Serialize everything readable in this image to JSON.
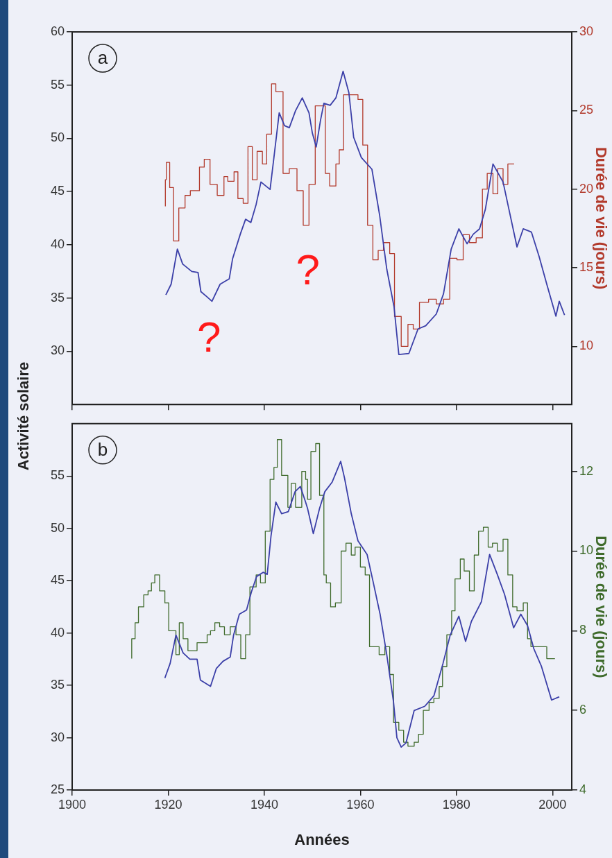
{
  "chart_data": [
    {
      "type": "line",
      "title": "a",
      "ylabel": "Activité solaire",
      "y2label": "Durée de vie (jours)",
      "xlim": [
        1900,
        2004
      ],
      "xticks": [
        1900,
        1920,
        1940,
        1960,
        1980,
        2000
      ],
      "ylim": [
        25,
        60
      ],
      "yticks": [
        30,
        35,
        40,
        45,
        50,
        55,
        60
      ],
      "y2lim": [
        6.3,
        30
      ],
      "y2ticks": [
        10,
        15,
        20,
        25,
        30
      ],
      "tick_labels": "y",
      "marker": "none",
      "grid": false,
      "legend": false,
      "annotations": [
        "?",
        "?"
      ],
      "series": [
        {
          "type": "line",
          "color": "#3b3fa8",
          "x": [
            1919.5,
            1920.6,
            1921.9,
            1923.0,
            1924.9,
            1926.2,
            1926.8,
            1928.1,
            1929.1,
            1930.8,
            1932.7,
            1933.4,
            1935.0,
            1936.1,
            1937.2,
            1938.3,
            1939.3,
            1941.2,
            1942.0,
            1943.1,
            1944.2,
            1945.2,
            1946.5,
            1947.9,
            1949.3,
            1950.0,
            1950.8,
            1951.7,
            1952.4,
            1953.7,
            1954.9,
            1956.4,
            1957.6,
            1958.6,
            1960.2,
            1962.4,
            1964.0,
            1965.5,
            1967.0,
            1968.0,
            1970.1,
            1972.0,
            1973.6,
            1975.8,
            1977.3,
            1978.9,
            1980.5,
            1982.2,
            1983.5,
            1984.8,
            1986.0,
            1987.6,
            1989.7,
            1990.7,
            1992.6,
            1993.9,
            1995.6,
            1997.2,
            1998.8,
            2000.7,
            2001.4,
            2002.5
          ],
          "values": [
            35.3,
            36.3,
            39.6,
            38.2,
            37.5,
            37.4,
            35.6,
            35.1,
            34.7,
            36.3,
            36.8,
            38.7,
            41.0,
            42.4,
            42.1,
            43.8,
            45.9,
            45.2,
            48.2,
            52.4,
            51.2,
            51.0,
            52.6,
            53.8,
            52.4,
            50.5,
            49.2,
            51.7,
            53.3,
            53.1,
            53.8,
            56.3,
            54.3,
            50.1,
            48.2,
            47.1,
            42.8,
            37.7,
            34.2,
            29.7,
            29.8,
            32.1,
            32.4,
            33.5,
            35.4,
            39.6,
            41.5,
            40.1,
            41.0,
            41.5,
            43.3,
            47.6,
            45.9,
            43.8,
            39.8,
            41.5,
            41.2,
            38.9,
            36.3,
            33.3,
            34.7,
            33.4
          ]
        },
        {
          "type": "step",
          "axis": "y2",
          "color": "#b23a2c",
          "x": [
            1919.4,
            1919.6,
            1920.3,
            1921.1,
            1922.2,
            1923.5,
            1924.6,
            1926.5,
            1927.5,
            1928.7,
            1930.2,
            1931.6,
            1932.4,
            1933.7,
            1934.5,
            1935.6,
            1936.6,
            1937.5,
            1938.5,
            1939.6,
            1940.5,
            1941.5,
            1942.4,
            1943.9,
            1945.2,
            1946.8,
            1948.1,
            1949.3,
            1950.6,
            1951.4,
            1952.7,
            1953.6,
            1954.9,
            1955.6,
            1956.5,
            1958.1,
            1959.5,
            1960.5,
            1961.5,
            1962.6,
            1963.7,
            1964.8,
            1966.1,
            1967.1,
            1968.5,
            1969.9,
            1971.0,
            1972.3,
            1974.2,
            1975.8,
            1977.3,
            1978.6,
            1980.1,
            1981.4,
            1982.7,
            1984.1,
            1985.4,
            1986.4,
            1987.6,
            1988.6,
            1989.7,
            1990.7,
            1991.6,
            1992.0
          ],
          "values": [
            18.9,
            20.6,
            21.7,
            20.1,
            16.7,
            18.8,
            19.6,
            19.9,
            21.4,
            21.9,
            20.3,
            19.6,
            20.8,
            20.5,
            21.1,
            19.4,
            19.1,
            22.7,
            20.6,
            22.4,
            21.6,
            23.5,
            26.7,
            26.2,
            21.0,
            21.3,
            19.9,
            17.7,
            20.3,
            25.3,
            25.3,
            21.0,
            20.2,
            21.6,
            22.5,
            26.0,
            26.0,
            25.7,
            22.8,
            17.7,
            15.5,
            16.1,
            16.6,
            15.9,
            11.9,
            10.0,
            11.4,
            11.1,
            12.8,
            13.0,
            12.7,
            13.0,
            15.6,
            15.5,
            17.1,
            16.6,
            16.9,
            20.0,
            21.0,
            19.7,
            21.3,
            20.3,
            21.6,
            21.6
          ]
        }
      ]
    },
    {
      "type": "line",
      "title": "b",
      "xlabel": "Années",
      "y2label": "Durée de vie (jours)",
      "xlim": [
        1900,
        2004
      ],
      "xticks": [
        1900,
        1920,
        1940,
        1960,
        1980,
        2000
      ],
      "ylim": [
        25,
        60
      ],
      "yticks": [
        25,
        30,
        35,
        40,
        45,
        50,
        55
      ],
      "y2lim": [
        4,
        13.2
      ],
      "y2ticks": [
        4,
        6,
        8,
        10,
        12
      ],
      "marker": "none",
      "grid": false,
      "legend": false,
      "series": [
        {
          "type": "line",
          "color": "#3b3fa8",
          "x": [
            1919.3,
            1920.4,
            1921.6,
            1923.1,
            1924.5,
            1926.0,
            1926.7,
            1928.8,
            1930.0,
            1931.4,
            1932.9,
            1933.6,
            1934.8,
            1936.3,
            1937.3,
            1938.4,
            1939.8,
            1940.6,
            1941.4,
            1942.4,
            1943.6,
            1945.0,
            1946.4,
            1947.5,
            1948.6,
            1949.0,
            1950.2,
            1951.5,
            1952.6,
            1954.1,
            1955.9,
            1956.7,
            1958.1,
            1959.5,
            1961.4,
            1962.6,
            1964.1,
            1965.5,
            1966.9,
            1967.6,
            1968.5,
            1969.5,
            1971.2,
            1973.4,
            1975.3,
            1977.2,
            1978.7,
            1980.5,
            1981.9,
            1983.1,
            1985.2,
            1986.9,
            1988.5,
            1990.0,
            1991.9,
            1993.4,
            1994.8,
            1996.1,
            1997.7,
            1999.8,
            2001.4
          ],
          "values": [
            35.7,
            37.1,
            39.8,
            38.1,
            37.5,
            37.5,
            35.5,
            34.9,
            36.6,
            37.3,
            37.7,
            39.8,
            41.8,
            42.2,
            43.9,
            45.4,
            45.8,
            45.6,
            49.3,
            52.5,
            51.4,
            51.6,
            53.5,
            54.0,
            52.5,
            51.9,
            49.5,
            51.9,
            53.5,
            54.4,
            56.4,
            54.8,
            51.4,
            48.8,
            47.5,
            45.0,
            41.8,
            37.9,
            33.4,
            30.0,
            29.1,
            29.5,
            32.6,
            33.0,
            34.0,
            37.1,
            39.8,
            41.6,
            39.2,
            41.1,
            43.0,
            47.5,
            45.6,
            43.7,
            40.5,
            41.8,
            40.7,
            38.5,
            36.8,
            33.6,
            33.9
          ]
        },
        {
          "type": "step",
          "axis": "y2",
          "color": "#3f6b2c",
          "x": [
            1912.4,
            1913.1,
            1913.8,
            1914.9,
            1915.8,
            1916.5,
            1917.2,
            1918.2,
            1919.3,
            1920.1,
            1921.6,
            1922.3,
            1923.1,
            1924.1,
            1925.1,
            1926.0,
            1927.0,
            1928.1,
            1928.8,
            1929.7,
            1930.7,
            1931.7,
            1932.9,
            1934.1,
            1935.1,
            1936.1,
            1937.0,
            1937.3,
            1938.3,
            1939.2,
            1940.2,
            1941.2,
            1942.0,
            1942.7,
            1943.6,
            1944.9,
            1945.6,
            1946.5,
            1947.8,
            1948.6,
            1949.0,
            1949.7,
            1950.7,
            1951.5,
            1952.4,
            1952.9,
            1953.8,
            1954.8,
            1956.0,
            1957.0,
            1958.1,
            1958.9,
            1960.0,
            1961.0,
            1961.9,
            1962.6,
            1963.9,
            1965.1,
            1966.1,
            1966.9,
            1968.0,
            1969.0,
            1969.9,
            1971.2,
            1972.1,
            1973.1,
            1974.3,
            1975.3,
            1976.4,
            1977.1,
            1978.0,
            1979.0,
            1979.7,
            1980.8,
            1981.6,
            1982.7,
            1983.7,
            1984.6,
            1985.6,
            1986.6,
            1987.5,
            1988.5,
            1989.7,
            1990.7,
            1991.7,
            1992.6,
            1993.9,
            1994.8,
            1995.5,
            1996.6,
            1997.6,
            1998.8,
            1999.8,
            2000.5
          ],
          "values": [
            7.3,
            7.8,
            8.2,
            8.6,
            8.9,
            9.0,
            9.2,
            9.4,
            9.0,
            8.7,
            8.0,
            7.4,
            8.2,
            7.8,
            7.5,
            7.5,
            7.7,
            7.7,
            7.9,
            8.0,
            8.2,
            8.1,
            7.9,
            8.1,
            7.9,
            7.3,
            7.9,
            9.1,
            9.1,
            9.4,
            9.2,
            10.5,
            11.8,
            12.1,
            12.8,
            11.9,
            11.1,
            11.7,
            11.1,
            12.0,
            11.8,
            11.3,
            12.5,
            12.7,
            11.4,
            9.4,
            9.2,
            8.6,
            8.7,
            10.0,
            10.2,
            9.9,
            10.1,
            9.6,
            9.4,
            7.6,
            7.6,
            7.4,
            7.6,
            6.9,
            5.7,
            5.5,
            5.2,
            5.1,
            5.2,
            5.4,
            6.0,
            6.2,
            6.3,
            6.6,
            7.1,
            7.9,
            8.5,
            9.3,
            9.8,
            9.5,
            9.0,
            9.9,
            10.5,
            10.6,
            10.1,
            10.2,
            10.0,
            10.3,
            9.4,
            8.6,
            8.5,
            8.7,
            7.8,
            7.6,
            7.6,
            7.6,
            7.3,
            7.3
          ]
        }
      ]
    }
  ]
}
